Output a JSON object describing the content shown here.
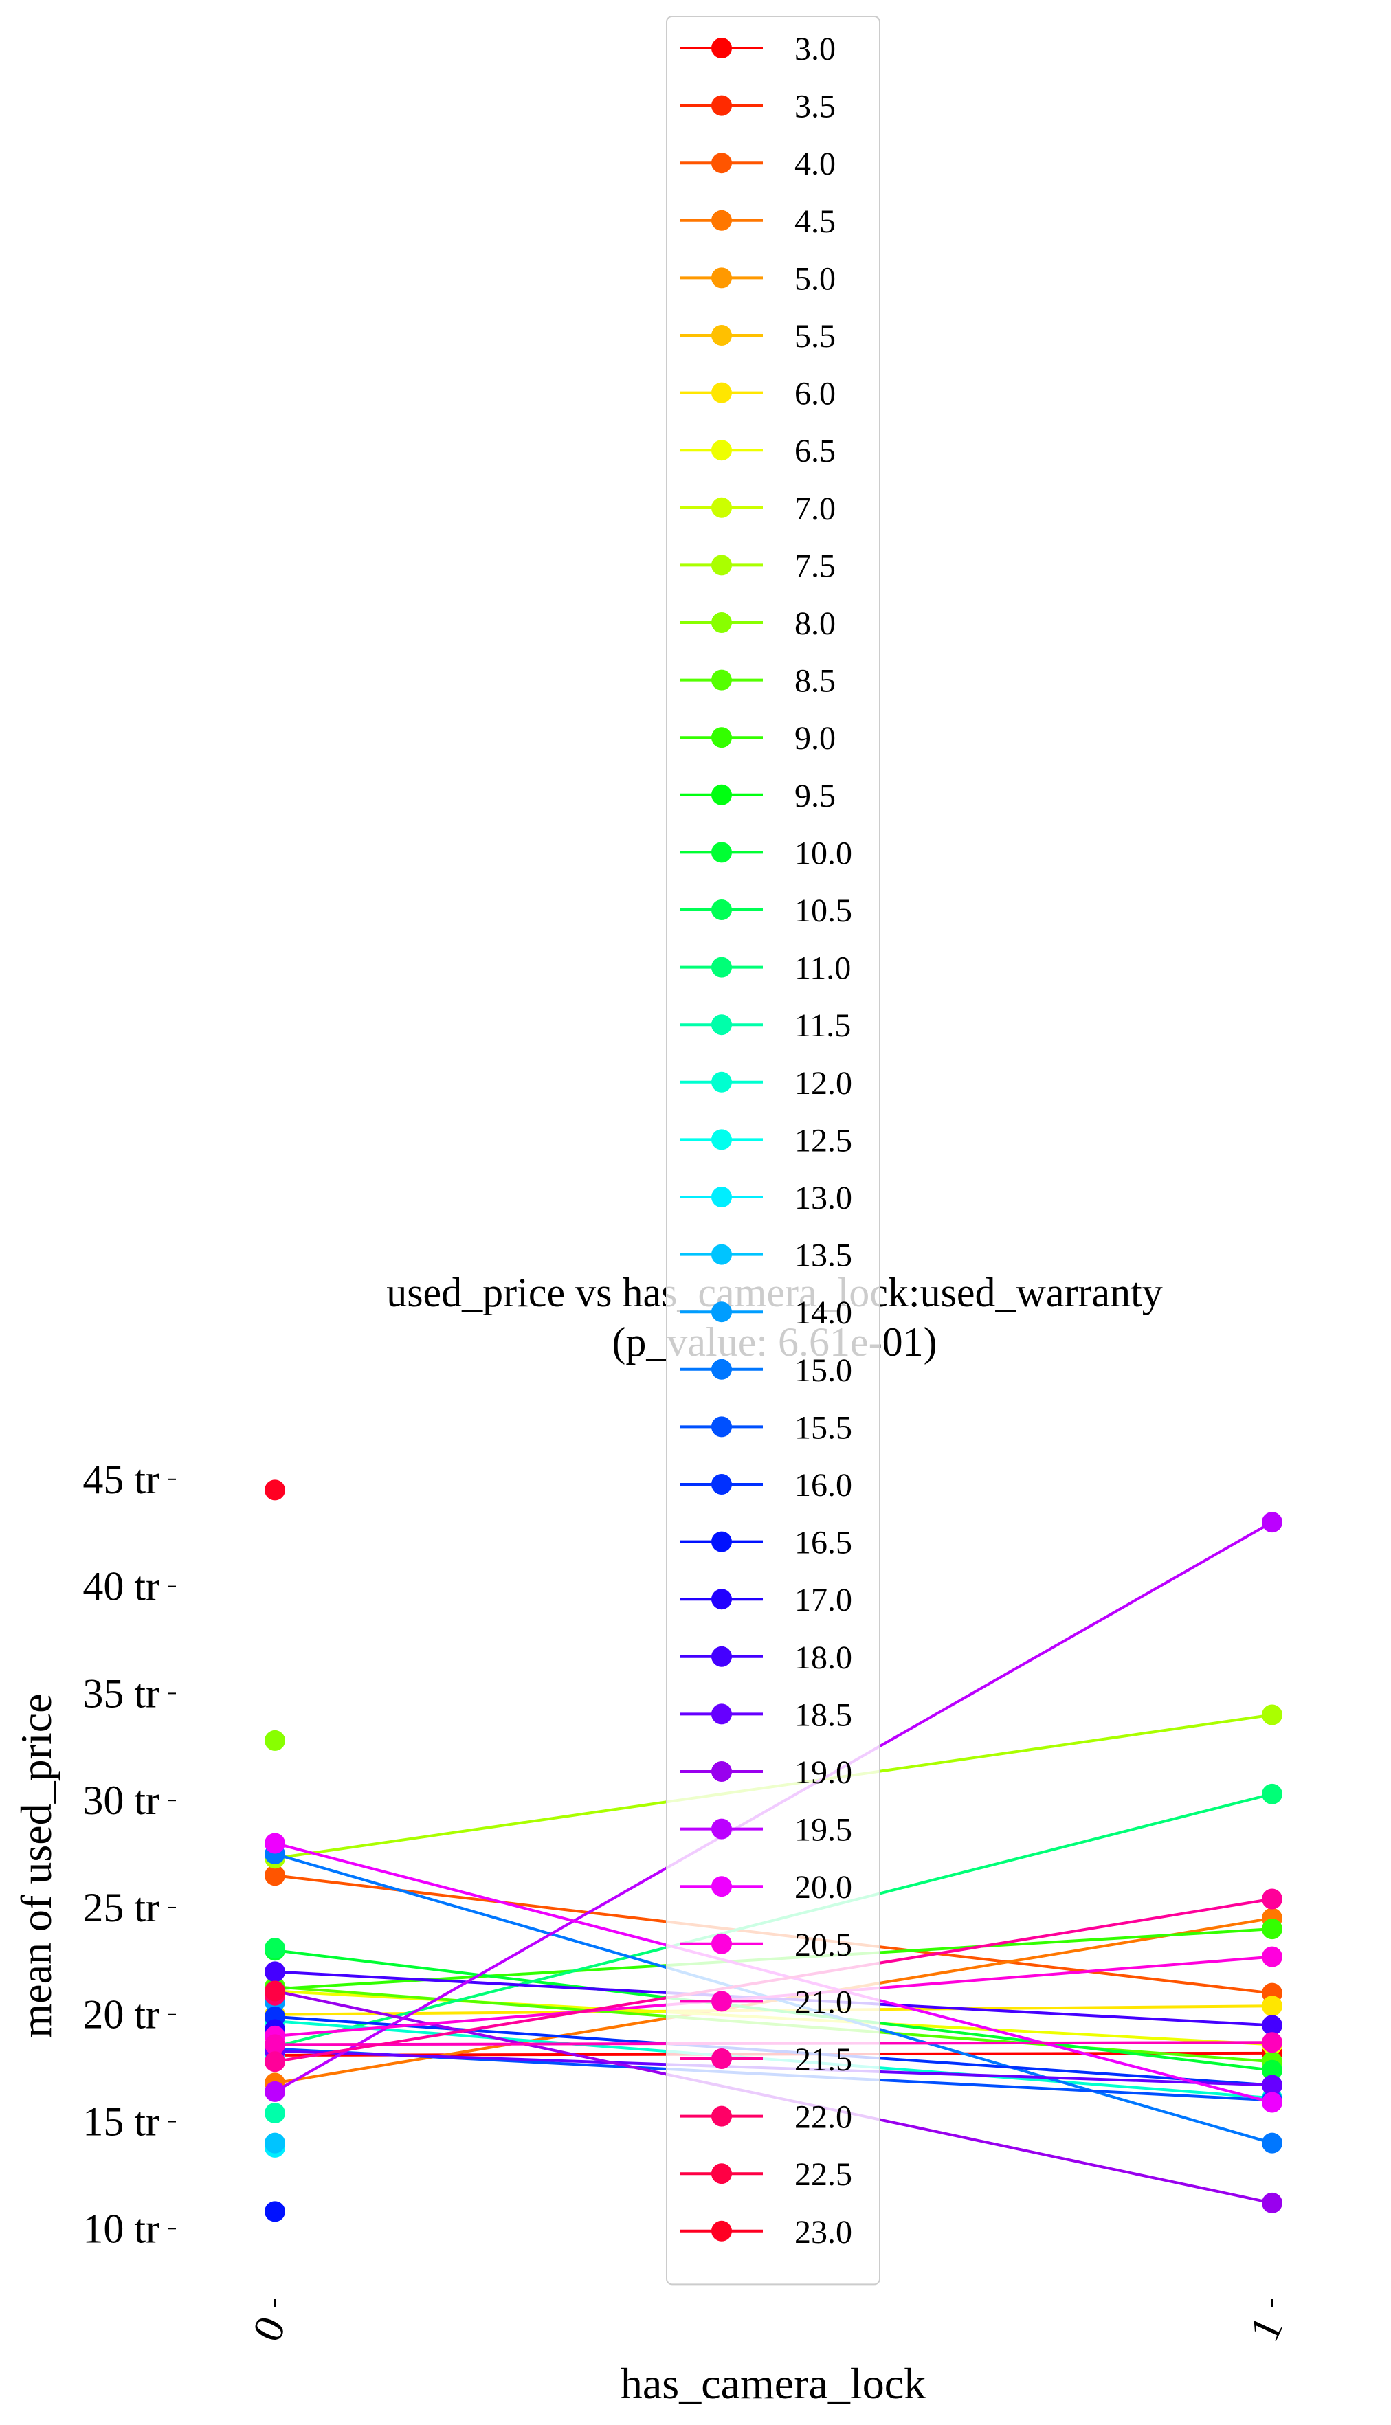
{
  "chart_data": {
    "type": "line",
    "title_line1": "used_price vs has_camera_lock:used_warranty",
    "title_line2": "(p_value: 6.61e-01)",
    "xlabel": "has_camera_lock",
    "ylabel": "mean of used_price",
    "categories": [
      "0",
      "1"
    ],
    "yticks": [
      10,
      15,
      20,
      25,
      30,
      35,
      40,
      45
    ],
    "ytick_labels": [
      "10 tr",
      "15 tr",
      "20 tr",
      "25 tr",
      "30 tr",
      "35 tr",
      "40 tr",
      "45 tr"
    ],
    "ylim": [
      6.8,
      48.3
    ],
    "legend_position": "upper center",
    "series": [
      {
        "name": "3.0",
        "color": "#ff0000",
        "values": [
          18.1,
          18.2
        ]
      },
      {
        "name": "3.5",
        "color": "#ff2a00",
        "values": [
          18.0,
          null
        ]
      },
      {
        "name": "4.0",
        "color": "#ff5500",
        "values": [
          26.5,
          21.0
        ]
      },
      {
        "name": "4.5",
        "color": "#ff7700",
        "values": [
          16.8,
          24.5
        ]
      },
      {
        "name": "5.0",
        "color": "#ff9900",
        "values": [
          17.9,
          null
        ]
      },
      {
        "name": "5.5",
        "color": "#ffc000",
        "values": [
          20.0,
          null
        ]
      },
      {
        "name": "6.0",
        "color": "#ffe600",
        "values": [
          20.0,
          20.4
        ]
      },
      {
        "name": "6.5",
        "color": "#eeff00",
        "values": [
          21.1,
          18.6
        ]
      },
      {
        "name": "7.0",
        "color": "#ccff00",
        "values": [
          21.0,
          null
        ]
      },
      {
        "name": "7.5",
        "color": "#aaff00",
        "values": [
          27.3,
          34.0
        ]
      },
      {
        "name": "8.0",
        "color": "#88ff00",
        "values": [
          32.8,
          null
        ]
      },
      {
        "name": "8.5",
        "color": "#55ff00",
        "values": [
          21.3,
          17.8
        ]
      },
      {
        "name": "9.0",
        "color": "#33ff00",
        "values": [
          21.2,
          24.0
        ]
      },
      {
        "name": "9.5",
        "color": "#00ff11",
        "values": [
          21.0,
          null
        ]
      },
      {
        "name": "10.0",
        "color": "#00ff33",
        "values": [
          23.0,
          17.4
        ]
      },
      {
        "name": "10.5",
        "color": "#00ff55",
        "values": [
          23.1,
          null
        ]
      },
      {
        "name": "11.0",
        "color": "#00ff77",
        "values": [
          18.5,
          30.3
        ]
      },
      {
        "name": "11.5",
        "color": "#00ffaa",
        "values": [
          15.4,
          null
        ]
      },
      {
        "name": "12.0",
        "color": "#00ffd0",
        "values": [
          19.7,
          16.1
        ]
      },
      {
        "name": "12.5",
        "color": "#00ffee",
        "values": [
          18.0,
          null
        ]
      },
      {
        "name": "13.0",
        "color": "#00eeff",
        "values": [
          13.8,
          null
        ]
      },
      {
        "name": "13.5",
        "color": "#00c4ff",
        "values": [
          14.0,
          null
        ]
      },
      {
        "name": "14.0",
        "color": "#009dff",
        "values": [
          20.6,
          null
        ]
      },
      {
        "name": "15.0",
        "color": "#0077ff",
        "values": [
          27.5,
          14.0
        ]
      },
      {
        "name": "15.5",
        "color": "#0050ff",
        "values": [
          18.4,
          16.0
        ]
      },
      {
        "name": "16.0",
        "color": "#0030ff",
        "values": [
          19.9,
          16.7
        ]
      },
      {
        "name": "16.5",
        "color": "#0011ff",
        "values": [
          10.8,
          null
        ]
      },
      {
        "name": "17.0",
        "color": "#2200ff",
        "values": [
          19.3,
          null
        ]
      },
      {
        "name": "18.0",
        "color": "#4400ff",
        "values": [
          22.0,
          19.5
        ]
      },
      {
        "name": "18.5",
        "color": "#6600ff",
        "values": [
          18.3,
          16.7
        ]
      },
      {
        "name": "19.0",
        "color": "#9900ee",
        "values": [
          21.1,
          11.2
        ]
      },
      {
        "name": "19.5",
        "color": "#bb00ff",
        "values": [
          16.4,
          43.0
        ]
      },
      {
        "name": "20.0",
        "color": "#ee00ff",
        "values": [
          28.0,
          15.9
        ]
      },
      {
        "name": "20.5",
        "color": "#ff00dd",
        "values": [
          19.0,
          22.7
        ]
      },
      {
        "name": "21.0",
        "color": "#ff00bb",
        "values": [
          18.6,
          18.7
        ]
      },
      {
        "name": "21.5",
        "color": "#ff0099",
        "values": [
          17.8,
          25.4
        ]
      },
      {
        "name": "22.0",
        "color": "#ff0066",
        "values": [
          20.9,
          null
        ]
      },
      {
        "name": "22.5",
        "color": "#ff0044",
        "values": [
          21.1,
          null
        ]
      },
      {
        "name": "23.0",
        "color": "#ff0022",
        "values": [
          44.5,
          null
        ]
      }
    ]
  }
}
